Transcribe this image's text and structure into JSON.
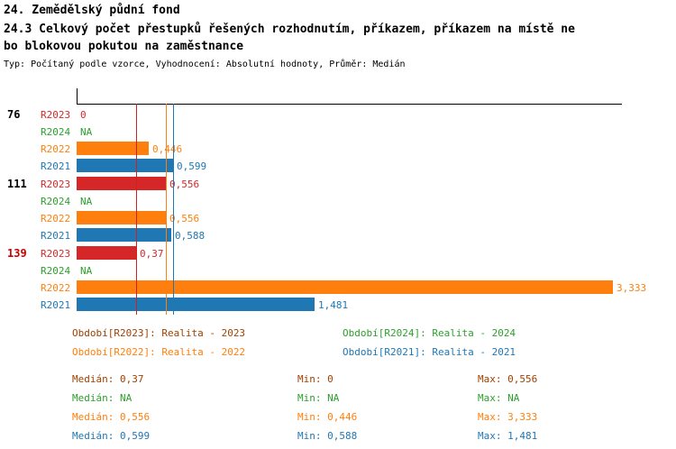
{
  "header": {
    "title": "24. Zemědělský půdní fond",
    "subtitle_line1": "24.3 Celkový počet přestupků řešených rozhodnutím, příkazem, příkazem na místě ne",
    "subtitle_line2": "bo blokovou pokutou na zaměstnance",
    "meta": "Typ: Počítaný podle vzorce, Vyhodnocení: Absolutní hodnoty, Průměr: Medián"
  },
  "colors": {
    "r2023_red": "#d62728",
    "r2024_green": "#2ca02c",
    "r2022_orange": "#ff7f0e",
    "r2021_blue": "#1f77b4",
    "highlight_red": "#cc0000",
    "axis_black": "#000000",
    "legend_2023_rust": "#a04000"
  },
  "chart_data": {
    "type": "bar",
    "orientation": "horizontal",
    "xlim": [
      0,
      3.39
    ],
    "grid": false,
    "value_format": "decimal-comma",
    "categories": [
      "76",
      "111",
      "139"
    ],
    "series_order": [
      "R2023",
      "R2024",
      "R2022",
      "R2021"
    ],
    "groups": [
      {
        "label": "76",
        "label_color": "#000000",
        "bars": [
          {
            "series": "R2023",
            "color": "#d62728",
            "value": 0,
            "value_label": "0"
          },
          {
            "series": "R2024",
            "color": "#2ca02c",
            "value": null,
            "value_label": "NA"
          },
          {
            "series": "R2022",
            "color": "#ff7f0e",
            "value": 0.446,
            "value_label": "0,446"
          },
          {
            "series": "R2021",
            "color": "#1f77b4",
            "value": 0.599,
            "value_label": "0,599"
          }
        ]
      },
      {
        "label": "111",
        "label_color": "#000000",
        "bars": [
          {
            "series": "R2023",
            "color": "#d62728",
            "value": 0.556,
            "value_label": "0,556"
          },
          {
            "series": "R2024",
            "color": "#2ca02c",
            "value": null,
            "value_label": "NA"
          },
          {
            "series": "R2022",
            "color": "#ff7f0e",
            "value": 0.556,
            "value_label": "0,556"
          },
          {
            "series": "R2021",
            "color": "#1f77b4",
            "value": 0.588,
            "value_label": "0,588"
          }
        ]
      },
      {
        "label": "139",
        "label_color": "#cc0000",
        "bars": [
          {
            "series": "R2023",
            "color": "#d62728",
            "value": 0.37,
            "value_label": "0,37"
          },
          {
            "series": "R2024",
            "color": "#2ca02c",
            "value": null,
            "value_label": "NA"
          },
          {
            "series": "R2022",
            "color": "#ff7f0e",
            "value": 3.333,
            "value_label": "3,333"
          },
          {
            "series": "R2021",
            "color": "#1f77b4",
            "value": 1.481,
            "value_label": "1,481"
          }
        ]
      }
    ],
    "median_lines": [
      {
        "series": "R2023",
        "value": 0.37,
        "color": "#cc2222"
      },
      {
        "series": "R2022",
        "value": 0.556,
        "color": "#ff7f0e"
      },
      {
        "series": "R2021",
        "value": 0.599,
        "color": "#1f77b4"
      }
    ]
  },
  "legend": {
    "entries": [
      {
        "label": "Období[R2023]:",
        "label_color": "#a04000",
        "value": "Realita - 2023",
        "value_color": "#a04000"
      },
      {
        "label": "Období[R2024]:",
        "label_color": "#2ca02c",
        "value": "Realita - 2024",
        "value_color": "#2ca02c"
      },
      {
        "label": "Období[R2022]:",
        "label_color": "#ff7f0e",
        "value": "Realita - 2022",
        "value_color": "#ff7f0e"
      },
      {
        "label": "Období[R2021]:",
        "label_color": "#1f77b4",
        "value": "Realita - 2021",
        "value_color": "#1f77b4"
      }
    ]
  },
  "stats": {
    "rows": [
      {
        "series": "R2023",
        "color": "#a04000",
        "cells": [
          {
            "label": "Medián:",
            "value": "0,37"
          },
          {
            "label": "Min:",
            "value": "0"
          },
          {
            "label": "Max:",
            "value": "0,556"
          }
        ]
      },
      {
        "series": "R2024",
        "color": "#2ca02c",
        "cells": [
          {
            "label": "Medián:",
            "value": "NA"
          },
          {
            "label": "Min:",
            "value": "NA"
          },
          {
            "label": "Max:",
            "value": "NA"
          }
        ]
      },
      {
        "series": "R2022",
        "color": "#ff7f0e",
        "cells": [
          {
            "label": "Medián:",
            "value": "0,556"
          },
          {
            "label": "Min:",
            "value": "0,446"
          },
          {
            "label": "Max:",
            "value": "3,333"
          }
        ]
      },
      {
        "series": "R2021",
        "color": "#1f77b4",
        "cells": [
          {
            "label": "Medián:",
            "value": "0,599"
          },
          {
            "label": "Min:",
            "value": "0,588"
          },
          {
            "label": "Max:",
            "value": "1,481"
          }
        ]
      }
    ]
  }
}
